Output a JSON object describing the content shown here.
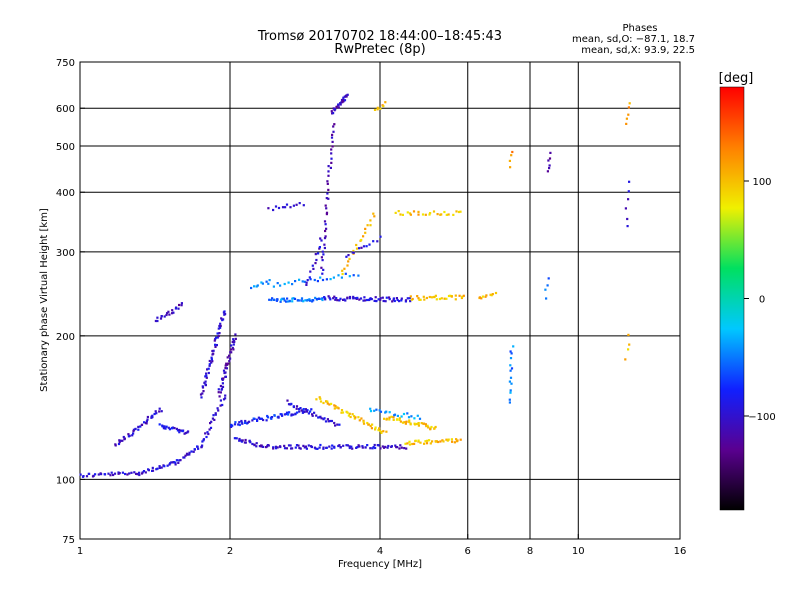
{
  "chart_data": {
    "type": "scatter",
    "title": "Tromsø 20170702 18:44:00–18:45:43",
    "subtitle": "RwPretec (8p)",
    "xlabel": "Frequency [MHz]",
    "ylabel": "Stationary phase Virtual Height [km]",
    "x_scale": "log",
    "y_scale": "log",
    "xlim": [
      1,
      16
    ],
    "ylim": [
      75,
      750
    ],
    "x_ticks": [
      1,
      2,
      4,
      6,
      8,
      10,
      16
    ],
    "x_tick_labels": [
      "1",
      "2",
      "4",
      "6",
      "8",
      "10",
      "16"
    ],
    "y_ticks": [
      75,
      100,
      200,
      300,
      400,
      500,
      600,
      750
    ],
    "y_tick_labels": [
      "75",
      "100",
      "200",
      "300",
      "400",
      "500",
      "600",
      "750"
    ],
    "x_grid": [
      2,
      4,
      6,
      8,
      10
    ],
    "y_grid": [
      100,
      200,
      300,
      400,
      500,
      600
    ],
    "grid": true,
    "stats": {
      "heading": "Phases",
      "line_o": "mean, sd,O: −87.1, 18.7",
      "line_x": "mean, sd,X:  93.9, 22.5"
    },
    "colorbar": {
      "label": "[deg]",
      "range": [
        -180,
        180
      ],
      "ticks": [
        100,
        0,
        -100
      ],
      "tick_labels": [
        "100",
        "0",
        "−100"
      ],
      "colors": [
        "#000000",
        "#5a0090",
        "#1020ff",
        "#00c8ff",
        "#00e060",
        "#f0f000",
        "#ff8000",
        "#ff0000"
      ]
    },
    "traces": [
      {
        "f0": 1.0,
        "f1": 1.3,
        "h0": 102,
        "h1": 103,
        "phase": -100,
        "n": 30
      },
      {
        "f0": 1.3,
        "f1": 1.55,
        "h0": 103,
        "h1": 108,
        "phase": -100,
        "n": 25
      },
      {
        "f0": 1.55,
        "f1": 1.75,
        "h0": 108,
        "h1": 118,
        "phase": -100,
        "n": 22
      },
      {
        "f0": 1.75,
        "f1": 1.95,
        "h0": 118,
        "h1": 150,
        "phase": -100,
        "n": 25
      },
      {
        "f0": 1.9,
        "f1": 2.05,
        "h0": 150,
        "h1": 200,
        "phase": -110,
        "n": 40
      },
      {
        "f0": 2.05,
        "f1": 2.3,
        "h0": 122,
        "h1": 118,
        "phase": -100,
        "n": 20
      },
      {
        "f0": 2.3,
        "f1": 4.5,
        "h0": 117,
        "h1": 117,
        "phase": -100,
        "n": 90
      },
      {
        "f0": 4.5,
        "f1": 5.8,
        "h0": 119,
        "h1": 121,
        "phase": 100,
        "n": 35
      },
      {
        "f0": 1.18,
        "f1": 1.45,
        "h0": 118,
        "h1": 140,
        "phase": -100,
        "n": 40
      },
      {
        "f0": 1.45,
        "f1": 1.65,
        "h0": 130,
        "h1": 125,
        "phase": -90,
        "n": 25
      },
      {
        "f0": 1.75,
        "f1": 1.95,
        "h0": 150,
        "h1": 225,
        "phase": -100,
        "n": 50
      },
      {
        "f0": 2.0,
        "f1": 2.9,
        "h0": 130,
        "h1": 140,
        "phase": -80,
        "n": 60
      },
      {
        "f0": 2.6,
        "f1": 3.3,
        "h0": 145,
        "h1": 130,
        "phase": -100,
        "n": 35
      },
      {
        "f0": 3.0,
        "f1": 4.1,
        "h0": 148,
        "h1": 125,
        "phase": 100,
        "n": 50
      },
      {
        "f0": 4.1,
        "f1": 5.2,
        "h0": 135,
        "h1": 128,
        "phase": 100,
        "n": 40
      },
      {
        "f0": 3.8,
        "f1": 4.8,
        "h0": 140,
        "h1": 135,
        "phase": -40,
        "n": 20
      },
      {
        "f0": 1.42,
        "f1": 1.6,
        "h0": 215,
        "h1": 232,
        "phase": -110,
        "n": 20
      },
      {
        "f0": 2.4,
        "f1": 3.1,
        "h0": 238,
        "h1": 238,
        "phase": -50,
        "n": 45
      },
      {
        "f0": 3.1,
        "f1": 4.6,
        "h0": 240,
        "h1": 238,
        "phase": -100,
        "n": 60
      },
      {
        "f0": 4.6,
        "f1": 5.9,
        "h0": 240,
        "h1": 241,
        "phase": 100,
        "n": 30
      },
      {
        "f0": 2.4,
        "f1": 3.6,
        "h0": 255,
        "h1": 270,
        "phase": -50,
        "n": 25
      },
      {
        "f0": 3.35,
        "f1": 3.9,
        "h0": 270,
        "h1": 360,
        "phase": 100,
        "n": 20
      },
      {
        "f0": 3.05,
        "f1": 3.22,
        "h0": 270,
        "h1": 560,
        "phase": -110,
        "n": 40
      },
      {
        "f0": 2.85,
        "f1": 3.05,
        "h0": 255,
        "h1": 320,
        "phase": -100,
        "n": 15
      },
      {
        "f0": 3.2,
        "f1": 3.45,
        "h0": 590,
        "h1": 640,
        "phase": -110,
        "n": 30
      },
      {
        "f0": 4.3,
        "f1": 5.8,
        "h0": 362,
        "h1": 362,
        "phase": 100,
        "n": 25
      },
      {
        "f0": 3.4,
        "f1": 4.0,
        "h0": 295,
        "h1": 320,
        "phase": -100,
        "n": 12
      },
      {
        "f0": 2.4,
        "f1": 2.8,
        "h0": 370,
        "h1": 378,
        "phase": -100,
        "n": 12
      },
      {
        "f0": 3.9,
        "f1": 4.1,
        "h0": 590,
        "h1": 615,
        "phase": 110,
        "n": 8
      },
      {
        "f0": 2.2,
        "f1": 2.4,
        "h0": 250,
        "h1": 262,
        "phase": -40,
        "n": 8
      },
      {
        "f0": 6.3,
        "f1": 6.8,
        "h0": 238,
        "h1": 248,
        "phase": 100,
        "n": 10
      },
      {
        "f0": 7.3,
        "f1": 7.35,
        "h0": 145,
        "h1": 190,
        "phase": -50,
        "n": 14
      },
      {
        "f0": 8.7,
        "f1": 8.75,
        "h0": 440,
        "h1": 480,
        "phase": -110,
        "n": 6
      },
      {
        "f0": 12.5,
        "f1": 12.6,
        "h0": 340,
        "h1": 420,
        "phase": -110,
        "n": 6
      },
      {
        "f0": 12.5,
        "f1": 12.6,
        "h0": 560,
        "h1": 615,
        "phase": 120,
        "n": 5
      },
      {
        "f0": 7.3,
        "f1": 7.35,
        "h0": 450,
        "h1": 490,
        "phase": 120,
        "n": 4
      },
      {
        "f0": 8.6,
        "f1": 8.7,
        "h0": 240,
        "h1": 265,
        "phase": -50,
        "n": 4
      },
      {
        "f0": 12.5,
        "f1": 12.6,
        "h0": 180,
        "h1": 200,
        "phase": 100,
        "n": 4
      }
    ]
  }
}
